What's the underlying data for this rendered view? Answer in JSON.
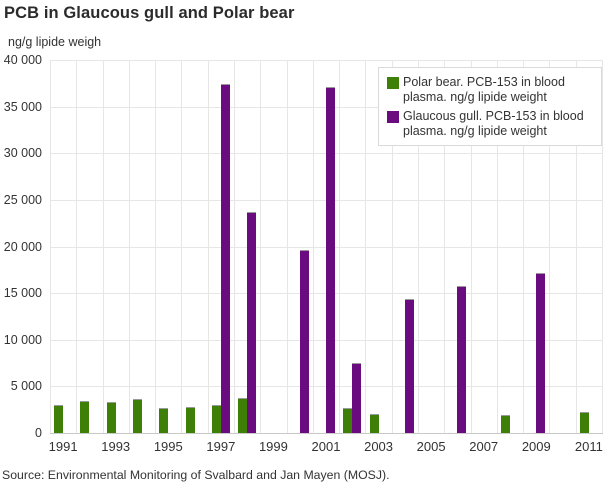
{
  "title": "PCB in Glaucous gull and Polar bear",
  "axis_unit_label": "ng/g lipide weigh",
  "source": "Source: Environmental Monitoring of Svalbard and Jan Mayen (MOSJ).",
  "colors": {
    "polar_bear": "#3e7f08",
    "glaucous_gull": "#6a0b80",
    "gridline": "#e6e6e6",
    "axis_line": "#c9c9c9",
    "text": "#333333",
    "title": "#2b2b2b"
  },
  "chart_data": {
    "type": "bar",
    "title": "PCB in Glaucous gull and Polar bear",
    "xlabel": "",
    "ylabel": "ng/g lipide weigh",
    "ylim": [
      0,
      40000
    ],
    "ytick_interval": 5000,
    "ytick_labels": [
      "0",
      "5 000",
      "10 000",
      "15 000",
      "20 000",
      "25 000",
      "30 000",
      "35 000",
      "40 000"
    ],
    "categories": [
      "1991",
      "1992",
      "1993",
      "1994",
      "1995",
      "1996",
      "1997",
      "1998",
      "1999",
      "2000",
      "2001",
      "2002",
      "2003",
      "2004",
      "2005",
      "2006",
      "2007",
      "2008",
      "2009",
      "2010",
      "2011"
    ],
    "xtick_labels": [
      "1991",
      "1993",
      "1995",
      "1997",
      "1999",
      "2001",
      "2003",
      "2005",
      "2007",
      "2009",
      "2011"
    ],
    "grid": true,
    "legend_position": "top-right",
    "series": [
      {
        "name": "Polar bear. PCB-153 in blood plasma. ng/g lipide weight",
        "color": "#3e7f08",
        "values": [
          3000,
          3400,
          3300,
          3600,
          2700,
          2800,
          3000,
          3700,
          null,
          null,
          null,
          2700,
          2000,
          null,
          null,
          null,
          null,
          1900,
          null,
          null,
          2200
        ]
      },
      {
        "name": "Glaucous gull. PCB-153 in blood plasma. ng/g lipide weight",
        "color": "#6a0b80",
        "values": [
          null,
          null,
          null,
          null,
          null,
          null,
          37400,
          23700,
          null,
          19600,
          37100,
          7500,
          null,
          14400,
          null,
          15800,
          null,
          null,
          17200,
          null,
          null
        ]
      }
    ]
  }
}
